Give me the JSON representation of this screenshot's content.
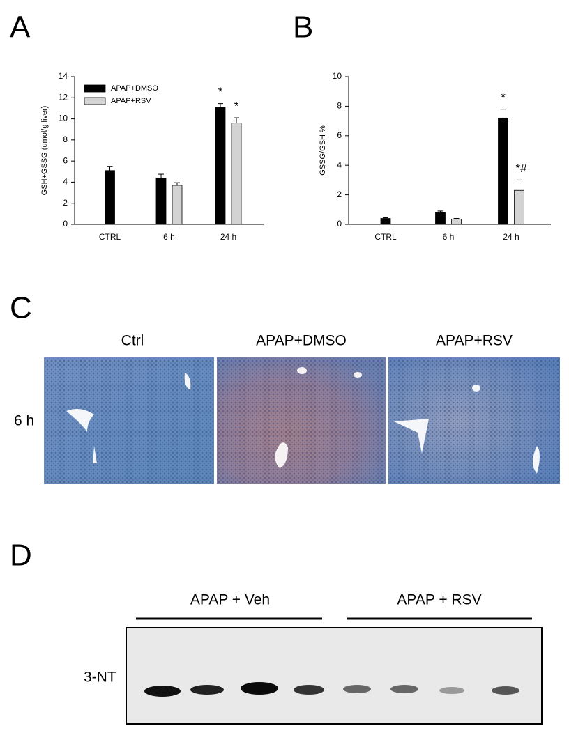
{
  "chart_data": [
    {
      "type": "bar",
      "ylabel": "GSH+GSSG (umol/g liver)",
      "categories": [
        "CTRL",
        "6 h",
        "24 h"
      ],
      "series": [
        {
          "name": "APAP+DMSO",
          "color": "#000000",
          "values": [
            5.1,
            4.4,
            11.1
          ],
          "errors": [
            0.4,
            0.35,
            0.35
          ],
          "annotations": [
            null,
            null,
            "*"
          ]
        },
        {
          "name": "APAP+RSV",
          "color": "#d3d3d3",
          "values": [
            null,
            3.7,
            9.6
          ],
          "errors": [
            null,
            0.25,
            0.5
          ],
          "annotations": [
            null,
            null,
            "*"
          ]
        }
      ],
      "ylim": [
        0,
        14
      ],
      "yticks": [
        0,
        2,
        4,
        6,
        8,
        10,
        12,
        14
      ],
      "legend": "upper left"
    },
    {
      "type": "bar",
      "ylabel": "GSSG/GSH %",
      "categories": [
        "CTRL",
        "6 h",
        "24 h"
      ],
      "series": [
        {
          "color": "#000000",
          "values": [
            0.4,
            0.8,
            7.2
          ],
          "errors": [
            0.05,
            0.1,
            0.6
          ],
          "annotations": [
            null,
            null,
            "*"
          ]
        },
        {
          "color": "#d3d3d3",
          "values": [
            null,
            0.35,
            2.3
          ],
          "errors": [
            null,
            0.05,
            0.7
          ],
          "annotations": [
            null,
            null,
            "*#"
          ]
        }
      ],
      "ylim": [
        0,
        10
      ],
      "yticks": [
        0,
        2,
        4,
        6,
        8,
        10
      ]
    }
  ],
  "panel_labels": [
    "A",
    "B",
    "C",
    "D"
  ],
  "histology": {
    "columns": [
      "Ctrl",
      "APAP+DMSO",
      "APAP+RSV"
    ],
    "row": "6 h"
  },
  "blot": {
    "groups": [
      "APAP + Veh",
      "APAP + RSV"
    ],
    "label": "3-NT"
  }
}
